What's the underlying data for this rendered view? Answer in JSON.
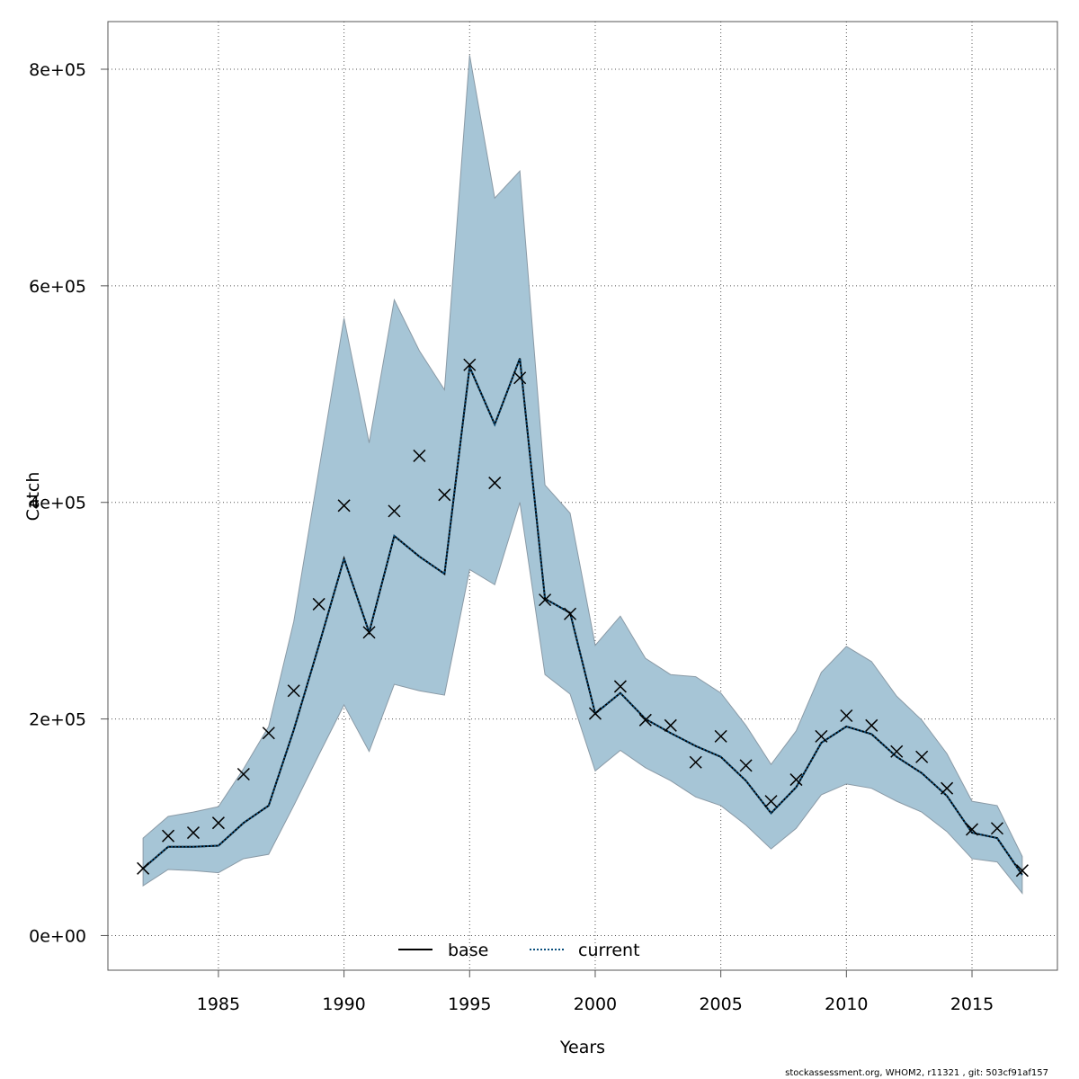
{
  "chart_data": {
    "type": "line",
    "title": "",
    "xlabel": "Years",
    "ylabel": "Catch",
    "xlim": [
      1980.6,
      2018.4
    ],
    "ylim": [
      -32000,
      844000
    ],
    "x_ticks": [
      {
        "value": 1985,
        "label": "1985"
      },
      {
        "value": 1990,
        "label": "1990"
      },
      {
        "value": 1995,
        "label": "1995"
      },
      {
        "value": 2000,
        "label": "2000"
      },
      {
        "value": 2005,
        "label": "2005"
      },
      {
        "value": 2010,
        "label": "2010"
      },
      {
        "value": 2015,
        "label": "2015"
      }
    ],
    "y_ticks": [
      {
        "value": 0,
        "label": "0e+00"
      },
      {
        "value": 200000,
        "label": "2e+05"
      },
      {
        "value": 400000,
        "label": "4e+05"
      },
      {
        "value": 600000,
        "label": "6e+05"
      },
      {
        "value": 800000,
        "label": "8e+05"
      }
    ],
    "grid": true,
    "legend_position": "bottom-center",
    "years": [
      1982,
      1983,
      1984,
      1985,
      1986,
      1987,
      1988,
      1989,
      1990,
      1991,
      1992,
      1993,
      1994,
      1995,
      1996,
      1997,
      1998,
      1999,
      2000,
      2001,
      2002,
      2003,
      2004,
      2005,
      2006,
      2007,
      2008,
      2009,
      2010,
      2011,
      2012,
      2013,
      2014,
      2015,
      2016,
      2017
    ],
    "band": {
      "color": "#a6c5d6",
      "lower": [
        46000,
        61000,
        60000,
        58000,
        71000,
        75000,
        120000,
        167000,
        213000,
        170000,
        232000,
        226000,
        222000,
        338000,
        324000,
        400000,
        241000,
        223000,
        152000,
        171000,
        155000,
        143000,
        128000,
        120000,
        102000,
        80000,
        99000,
        130000,
        140000,
        136000,
        124000,
        114000,
        96000,
        71000,
        68000,
        39000
      ],
      "upper": [
        90000,
        110000,
        114000,
        119000,
        154000,
        193000,
        290000,
        430000,
        570000,
        455000,
        587000,
        540000,
        504000,
        813000,
        681000,
        706000,
        416000,
        390000,
        268000,
        295000,
        256000,
        241000,
        239000,
        224000,
        194000,
        158000,
        189000,
        243000,
        267000,
        253000,
        221000,
        199000,
        168000,
        124000,
        120000,
        73000
      ]
    },
    "series": [
      {
        "name": "base",
        "color": "#000000",
        "values": [
          62000,
          82000,
          82000,
          83000,
          104000,
          120000,
          190000,
          268000,
          348000,
          280000,
          369000,
          350000,
          334000,
          525000,
          472000,
          533000,
          311000,
          298000,
          205000,
          224000,
          200000,
          187000,
          175000,
          165000,
          143000,
          113000,
          137000,
          178000,
          193000,
          186000,
          165000,
          150000,
          129000,
          95000,
          90000,
          56000
        ]
      },
      {
        "name": "current",
        "color": "#0a4f7d",
        "dashed": true,
        "values": [
          62000,
          82000,
          82000,
          83000,
          104000,
          120000,
          190000,
          268000,
          348000,
          280000,
          369000,
          350000,
          334000,
          525000,
          472000,
          533000,
          311000,
          298000,
          205000,
          224000,
          200000,
          187000,
          175000,
          165000,
          143000,
          113000,
          137000,
          178000,
          193000,
          186000,
          165000,
          150000,
          129000,
          95000,
          90000,
          56000
        ]
      }
    ],
    "observed": {
      "marker": "x",
      "values": [
        62000,
        92000,
        95000,
        104000,
        149000,
        187000,
        226000,
        306000,
        397000,
        280000,
        392000,
        443000,
        407000,
        527000,
        418000,
        515000,
        310000,
        297000,
        205000,
        230000,
        199000,
        194000,
        160000,
        184000,
        157000,
        124000,
        144000,
        184000,
        203000,
        194000,
        170000,
        165000,
        136000,
        98000,
        99000,
        60000
      ]
    }
  },
  "footer": "stockassessment.org, WHOM2, r11321 , git: 503cf91af157"
}
